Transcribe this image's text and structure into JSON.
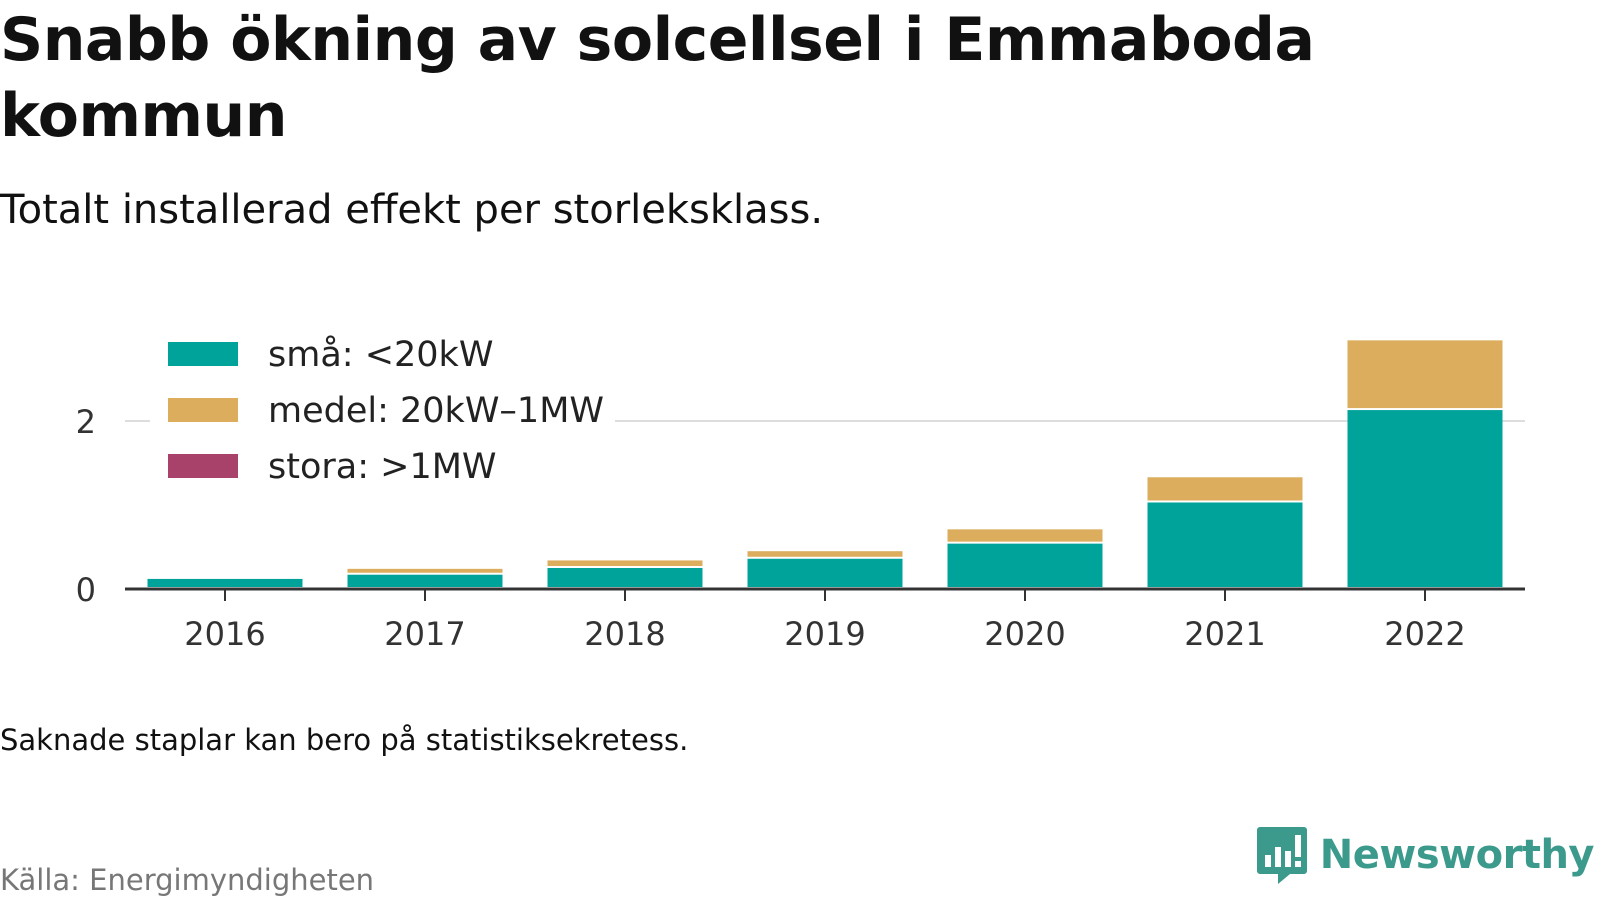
{
  "header": {
    "title": "Snabb ökning av solcellsel i Emmaboda kommun",
    "subtitle": "Totalt installerad effekt per storleksklass."
  },
  "footer": {
    "note": "Saknade staplar kan bero på statistiksekretess.",
    "source": "Källa: Energimyndigheten",
    "brand": "Newsworthy",
    "brand_icon": "newsworthy-logo-icon",
    "brand_color": "#3c9a8c"
  },
  "chart_data": {
    "type": "bar",
    "stacked": true,
    "categories": [
      "2016",
      "2017",
      "2018",
      "2019",
      "2020",
      "2021",
      "2022"
    ],
    "series": [
      {
        "name": "små: <20kW",
        "color": "#00a39a",
        "values": [
          0.12,
          0.17,
          0.25,
          0.36,
          0.54,
          1.03,
          2.13
        ]
      },
      {
        "name": "medel: 20kW–1MW",
        "color": "#dbad5d",
        "values": [
          0.0,
          0.07,
          0.09,
          0.09,
          0.17,
          0.3,
          0.83
        ]
      },
      {
        "name": "stora: >1MW",
        "color": "#a8426b",
        "values": [
          0,
          0,
          0,
          0,
          0,
          0,
          0
        ]
      }
    ],
    "yticks": [
      0,
      2
    ],
    "ylim": [
      0,
      3.2
    ],
    "grid": true,
    "legend_position": "top-left"
  }
}
